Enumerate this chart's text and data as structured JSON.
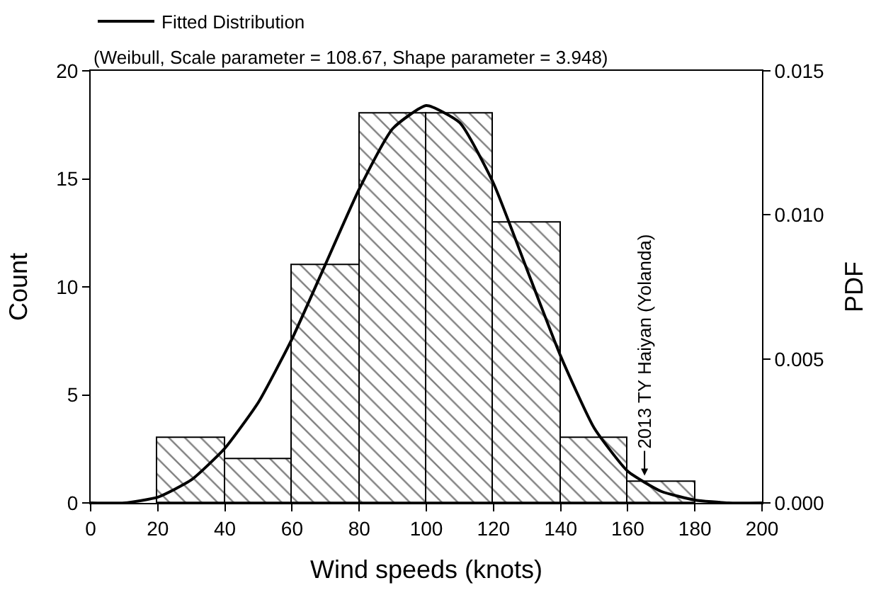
{
  "chart_data": {
    "type": "histogram",
    "xlabel": "Wind speeds (knots)",
    "ylabel": "Count",
    "y2label": "PDF",
    "bins": [
      20,
      40,
      60,
      80,
      100,
      120,
      140,
      160,
      180
    ],
    "values": [
      3,
      2,
      11,
      18,
      18,
      13,
      3,
      1
    ],
    "color": "#000000",
    "series": [
      {
        "name": "Fitted Distribution",
        "type": "line",
        "axis": "y2",
        "color": "#000000",
        "x": [
          0,
          10,
          20,
          30,
          40,
          50,
          60,
          70,
          80,
          90,
          100,
          110,
          120,
          130,
          140,
          150,
          160,
          170,
          180,
          190,
          200
        ],
        "values": [
          0,
          0,
          0.0002,
          0.0008,
          0.0019,
          0.0035,
          0.0057,
          0.0083,
          0.0109,
          0.013,
          0.0138,
          0.0132,
          0.0111,
          0.0081,
          0.0051,
          0.0026,
          0.0011,
          0.0004,
          0.0001,
          0,
          0
        ]
      }
    ],
    "annotations": [
      "(Weibull, Scale parameter = 108.67, Shape parameter = 3.948)",
      {
        "text": "2013 TY Haiyan (Yolanda)",
        "x": 165,
        "y": 1
      }
    ],
    "xlim": [
      0,
      200
    ],
    "xticks": [
      0,
      20,
      40,
      60,
      80,
      100,
      120,
      140,
      160,
      180,
      200
    ],
    "ylim": [
      0,
      20
    ],
    "yticks": [
      0,
      5,
      10,
      15,
      20
    ],
    "y2lim": [
      0,
      0.015
    ],
    "y2ticks": [
      {
        "value": 0,
        "label": "0.000"
      },
      {
        "value": 0.005,
        "label": "0.005"
      },
      {
        "value": 0.01,
        "label": "0.010"
      },
      {
        "value": 0.015,
        "label": "0.015"
      }
    ],
    "grid": false,
    "legend": "top left",
    "marker": "none",
    "line_style": "solid"
  }
}
